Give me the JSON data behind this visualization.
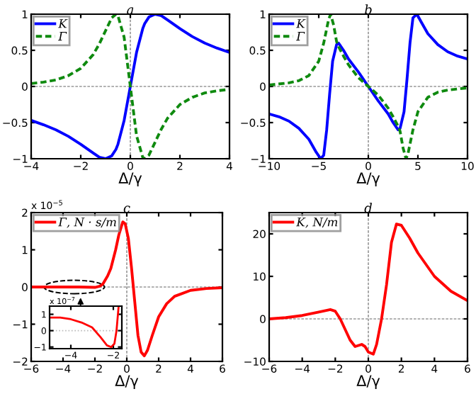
{
  "chart_data": [
    {
      "type": "line",
      "title": "a",
      "xlabel": "Δ/γ",
      "xlim": [
        -4,
        4
      ],
      "xticks": [
        -4,
        -2,
        0,
        2,
        4
      ],
      "ylim": [
        -1,
        1
      ],
      "yticks": [
        -1,
        -0.5,
        0,
        0.5,
        1
      ],
      "legend": "top left",
      "grid": false,
      "x": [
        -4,
        -3.5,
        -3,
        -2.5,
        -2,
        -1.5,
        -1.25,
        -1,
        -0.75,
        -0.58,
        -0.5,
        -0.25,
        0,
        0.25,
        0.5,
        0.58,
        0.75,
        1,
        1.25,
        1.5,
        2,
        2.5,
        3,
        3.5,
        4
      ],
      "series": [
        {
          "name": "K",
          "color": "#0000ff",
          "line_style": "solid",
          "values": [
            -0.47,
            -0.53,
            -0.6,
            -0.69,
            -0.8,
            -0.92,
            -0.98,
            -1,
            -0.96,
            -0.87,
            -0.8,
            -0.47,
            0,
            0.47,
            0.8,
            0.87,
            0.96,
            1,
            0.98,
            0.92,
            0.8,
            0.69,
            0.6,
            0.53,
            0.47
          ]
        },
        {
          "name": "Γ",
          "color": "#0f8a0f",
          "line_style": "dashed",
          "values": [
            0.04,
            0.06,
            0.09,
            0.15,
            0.25,
            0.44,
            0.59,
            0.77,
            0.95,
            1,
            0.98,
            0.68,
            0,
            -0.68,
            -0.98,
            -1,
            -0.95,
            -0.77,
            -0.59,
            -0.44,
            -0.25,
            -0.15,
            -0.09,
            -0.06,
            -0.04
          ]
        }
      ],
      "ref_lines": [
        {
          "axis": "x",
          "value": 0,
          "color": "#999999",
          "line_style": "dashed"
        },
        {
          "axis": "y",
          "value": 0,
          "color": "#999999",
          "line_style": "dashed"
        }
      ]
    },
    {
      "type": "line",
      "title": "b",
      "xlabel": "Δ/γ",
      "xlim": [
        -10,
        10
      ],
      "xticks": [
        -10,
        -5,
        0,
        5,
        10
      ],
      "ylim": [
        -1,
        1
      ],
      "yticks": [
        -1,
        -0.5,
        0,
        0.5,
        1
      ],
      "legend": "top left",
      "grid": false,
      "series": [
        {
          "name": "K",
          "color": "#0000ff",
          "line_style": "solid",
          "x": [
            -10,
            -9,
            -8,
            -7,
            -6,
            -5.3,
            -4.8,
            -4.5,
            -4.2,
            -3.9,
            -3.6,
            -3.2,
            -3,
            -2.5,
            -2,
            -1,
            0,
            1,
            2,
            2.5,
            3,
            3.2,
            3.6,
            3.9,
            4.2,
            4.5,
            4.9,
            5.3,
            6,
            7,
            8,
            9,
            10
          ],
          "values": [
            -0.38,
            -0.42,
            -0.48,
            -0.58,
            -0.73,
            -0.9,
            -1,
            -0.95,
            -0.6,
            -0.1,
            0.35,
            0.58,
            0.6,
            0.5,
            0.38,
            0.2,
            0,
            -0.2,
            -0.38,
            -0.5,
            -0.6,
            -0.58,
            -0.35,
            0.1,
            0.6,
            0.95,
            1,
            0.9,
            0.73,
            0.58,
            0.48,
            0.42,
            0.38
          ]
        },
        {
          "name": "Γ",
          "color": "#0f8a0f",
          "line_style": "dashed",
          "x": [
            -10,
            -8,
            -7,
            -6,
            -5,
            -4.5,
            -4,
            -3.8,
            -3.5,
            -3.2,
            -3,
            -2.5,
            -2,
            -1,
            0,
            1,
            2,
            2.5,
            3,
            3.2,
            3.5,
            3.8,
            4,
            4.5,
            5,
            6,
            7,
            8,
            10
          ],
          "values": [
            0.02,
            0.05,
            0.08,
            0.15,
            0.35,
            0.6,
            0.93,
            1,
            0.85,
            0.62,
            0.55,
            0.42,
            0.3,
            0.12,
            0,
            -0.12,
            -0.3,
            -0.42,
            -0.55,
            -0.62,
            -0.85,
            -1,
            -0.93,
            -0.6,
            -0.35,
            -0.15,
            -0.08,
            -0.05,
            -0.02
          ]
        }
      ],
      "ref_lines": [
        {
          "axis": "x",
          "value": 0,
          "color": "#999999",
          "line_style": "dashed"
        },
        {
          "axis": "y",
          "value": 0,
          "color": "#999999",
          "line_style": "dashed"
        }
      ]
    },
    {
      "type": "line",
      "title": "c",
      "xlabel": "Δ/γ",
      "xlim": [
        -6,
        6
      ],
      "xticks": [
        -6,
        -4,
        -2,
        0,
        2,
        4,
        6
      ],
      "ylim": [
        -2,
        2
      ],
      "yticks": [
        -2,
        -1,
        0,
        1,
        2
      ],
      "legend": "top left",
      "grid": false,
      "annotations": [
        "x 10$^{−5}$"
      ],
      "series": [
        {
          "name": "Γ, N · s/m",
          "color": "#ff0000",
          "line_style": "solid",
          "x": [
            -6,
            -5,
            -4,
            -3,
            -2,
            -1.7,
            -1.5,
            -1.2,
            -1,
            -0.7,
            -0.5,
            -0.25,
            -0.1,
            0.1,
            0.3,
            0.5,
            0.7,
            0.9,
            1.1,
            1.3,
            1.6,
            2,
            2.5,
            3,
            4,
            5,
            6
          ],
          "values": [
            0,
            0,
            0,
            0,
            -0.01,
            0.02,
            0.08,
            0.3,
            0.5,
            1.0,
            1.4,
            1.75,
            1.7,
            1.3,
            0.5,
            -0.4,
            -1.3,
            -1.75,
            -1.85,
            -1.7,
            -1.3,
            -0.8,
            -0.45,
            -0.25,
            -0.09,
            -0.04,
            -0.02
          ]
        }
      ],
      "ref_lines": [
        {
          "axis": "x",
          "value": 0,
          "color": "#999999",
          "line_style": "dashed"
        },
        {
          "axis": "y",
          "value": 0,
          "color": "#999999",
          "line_style": "dashed"
        }
      ]
    },
    {
      "type": "line",
      "title": "d",
      "xlabel": "Δ/γ",
      "xlim": [
        -6,
        6
      ],
      "xticks": [
        -6,
        -4,
        -2,
        0,
        2,
        4,
        6
      ],
      "ylim": [
        -10,
        25
      ],
      "yticks": [
        -10,
        0,
        10,
        20
      ],
      "legend": "top left",
      "grid": false,
      "series": [
        {
          "name": "K, N/m",
          "color": "#ff0000",
          "line_style": "solid",
          "x": [
            -6,
            -5,
            -4,
            -3,
            -2.3,
            -2,
            -1.7,
            -1.4,
            -1.1,
            -0.8,
            -0.4,
            -0.2,
            0,
            0.3,
            0.5,
            0.8,
            1.1,
            1.4,
            1.7,
            2,
            2.5,
            3,
            4,
            5,
            6
          ],
          "values": [
            0,
            0.3,
            0.8,
            1.6,
            2.2,
            1.8,
            0,
            -2.5,
            -5,
            -6.5,
            -6,
            -6.5,
            -7.8,
            -8.3,
            -6,
            0,
            8,
            18,
            22.3,
            22,
            19,
            15.5,
            10,
            6.5,
            4.3
          ]
        }
      ],
      "ref_lines": [
        {
          "axis": "x",
          "value": 0,
          "color": "#999999",
          "line_style": "dashed"
        },
        {
          "axis": "y",
          "value": 0,
          "color": "#999999",
          "line_style": "dashed"
        }
      ]
    },
    {
      "type": "line",
      "xlim": [
        -5,
        -1.6
      ],
      "xticks": [
        -4,
        -2
      ],
      "ylim": [
        -1.1,
        1.5
      ],
      "yticks": [
        -1,
        0,
        1
      ],
      "grid": false,
      "annotations": [
        "x 10$^{−7}$"
      ],
      "series": [
        {
          "color": "#ff0000",
          "line_style": "solid",
          "x": [
            -5,
            -4.5,
            -4,
            -3.5,
            -3,
            -2.6,
            -2.3,
            -2.1,
            -1.95,
            -1.85,
            -1.75
          ],
          "values": [
            0.8,
            0.8,
            0.7,
            0.5,
            0.2,
            -0.4,
            -0.9,
            -1,
            -0.8,
            0,
            1.5
          ]
        }
      ],
      "ref_lines": [
        {
          "axis": "y",
          "value": 0,
          "color": "#bbbbbb",
          "line_style": "dotted"
        }
      ]
    }
  ]
}
